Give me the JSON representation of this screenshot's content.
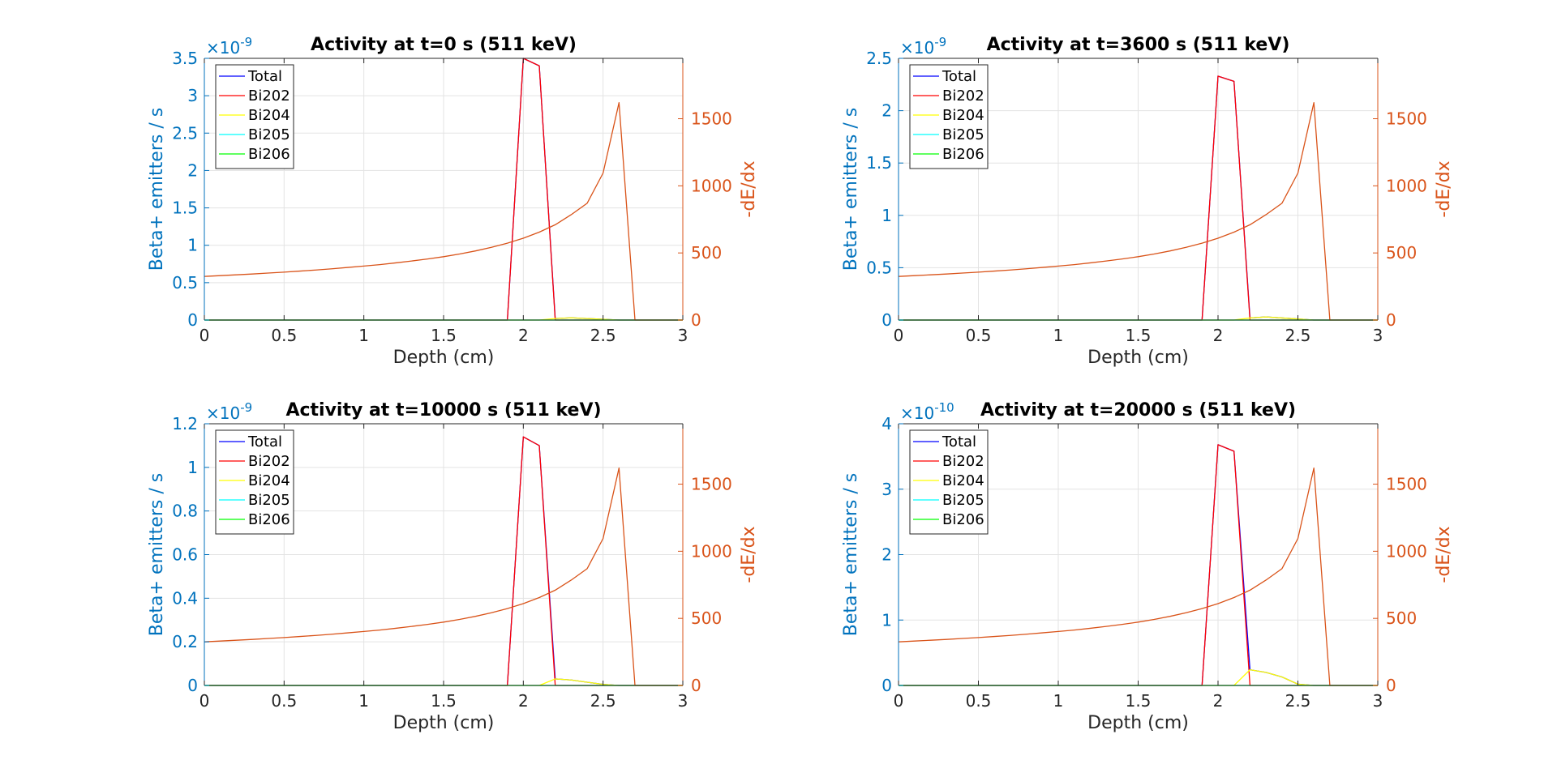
{
  "colors": {
    "left_axis": "#0072bd",
    "right_axis": "#d95319",
    "x_axis": "#262626",
    "grid": "#e3e3e3"
  },
  "legend_placement": "top-left",
  "grid": true,
  "chart_data": [
    {
      "type": "line",
      "title": "Activity at t=0 s (511 keV)",
      "xlabel": "Depth (cm)",
      "ylabel": "Beta+ emitters / s",
      "y2label": "-dE/dx",
      "exponent_base": "×10",
      "exponent_power": "-9",
      "xlim": [
        0,
        3
      ],
      "ylim": [
        0,
        3.5
      ],
      "y2lim": [
        0,
        1950
      ],
      "xticks": [
        "0",
        "0.5",
        "1",
        "1.5",
        "2",
        "2.5",
        "3"
      ],
      "yticks": [
        "0",
        "0.5",
        "1",
        "1.5",
        "2",
        "2.5",
        "3",
        "3.5"
      ],
      "y2ticks": [
        "0",
        "500",
        "1000",
        "1500"
      ],
      "x": [
        0,
        0.1,
        0.2,
        0.3,
        0.4,
        0.5,
        0.6,
        0.7,
        0.8,
        0.9,
        1.0,
        1.1,
        1.2,
        1.3,
        1.4,
        1.5,
        1.6,
        1.7,
        1.8,
        1.9,
        2.0,
        2.1,
        2.2,
        2.3,
        2.4,
        2.5,
        2.6,
        2.7,
        2.8,
        2.9,
        3.0
      ],
      "series": [
        {
          "name": "Total",
          "color": "#0000ff",
          "axis": "left",
          "values": [
            0,
            0,
            0,
            0,
            0,
            0,
            0,
            0,
            0,
            0,
            0,
            0,
            0,
            0,
            0,
            0,
            0,
            0,
            0,
            0,
            3.5,
            3.4,
            0.02,
            0.03,
            0.02,
            0.01,
            0,
            0,
            0,
            0,
            0
          ]
        },
        {
          "name": "Bi202",
          "color": "#ff0000",
          "axis": "left",
          "values": [
            0,
            0,
            0,
            0,
            0,
            0,
            0,
            0,
            0,
            0,
            0,
            0,
            0,
            0,
            0,
            0,
            0,
            0,
            0,
            0,
            3.5,
            3.4,
            0,
            0,
            0,
            0,
            0,
            0,
            0,
            0,
            0
          ]
        },
        {
          "name": "Bi204",
          "color": "#ffff00",
          "axis": "left",
          "values": [
            0,
            0,
            0,
            0,
            0,
            0,
            0,
            0,
            0,
            0,
            0,
            0,
            0,
            0,
            0,
            0,
            0,
            0,
            0,
            0,
            0,
            0,
            0.02,
            0.03,
            0.02,
            0.01,
            0,
            0,
            0,
            0,
            0
          ]
        },
        {
          "name": "Bi205",
          "color": "#00ffff",
          "axis": "left",
          "values": [
            0,
            0,
            0,
            0,
            0,
            0,
            0,
            0,
            0,
            0,
            0,
            0,
            0,
            0,
            0,
            0,
            0,
            0,
            0,
            0,
            0,
            0,
            0,
            0,
            0,
            0,
            0,
            0,
            0,
            0,
            0
          ]
        },
        {
          "name": "Bi206",
          "color": "#00ff00",
          "axis": "left",
          "values": [
            0,
            0,
            0,
            0,
            0,
            0,
            0,
            0,
            0,
            0,
            0,
            0,
            0,
            0,
            0,
            0,
            0,
            0,
            0,
            0,
            0,
            0,
            0,
            0,
            0,
            0,
            0,
            0,
            0,
            0,
            0
          ]
        },
        {
          "color": "#d95319",
          "axis": "right",
          "values": [
            325,
            331,
            337,
            343,
            350,
            357,
            365,
            373,
            382,
            392,
            402,
            413,
            426,
            440,
            455,
            472,
            492,
            515,
            542,
            573,
            610,
            655,
            710,
            785,
            870,
            1095,
            1620,
            0,
            0,
            0,
            0
          ]
        }
      ]
    },
    {
      "type": "line",
      "title": "Activity at t=3600 s (511 keV)",
      "xlabel": "Depth (cm)",
      "ylabel": "Beta+ emitters / s",
      "y2label": "-dE/dx",
      "exponent_base": "×10",
      "exponent_power": "-9",
      "xlim": [
        0,
        3
      ],
      "ylim": [
        0,
        2.5
      ],
      "y2lim": [
        0,
        1950
      ],
      "xticks": [
        "0",
        "0.5",
        "1",
        "1.5",
        "2",
        "2.5",
        "3"
      ],
      "yticks": [
        "0",
        "0.5",
        "1",
        "1.5",
        "2",
        "2.5"
      ],
      "y2ticks": [
        "0",
        "500",
        "1000",
        "1500"
      ],
      "x": [
        0,
        0.1,
        0.2,
        0.3,
        0.4,
        0.5,
        0.6,
        0.7,
        0.8,
        0.9,
        1.0,
        1.1,
        1.2,
        1.3,
        1.4,
        1.5,
        1.6,
        1.7,
        1.8,
        1.9,
        2.0,
        2.1,
        2.2,
        2.3,
        2.4,
        2.5,
        2.6,
        2.7,
        2.8,
        2.9,
        3.0
      ],
      "series": [
        {
          "name": "Total",
          "color": "#0000ff",
          "axis": "left",
          "values": [
            0,
            0,
            0,
            0,
            0,
            0,
            0,
            0,
            0,
            0,
            0,
            0,
            0,
            0,
            0,
            0,
            0,
            0,
            0,
            0,
            2.33,
            2.28,
            0.02,
            0.03,
            0.02,
            0.01,
            0,
            0,
            0,
            0,
            0
          ]
        },
        {
          "name": "Bi202",
          "color": "#ff0000",
          "axis": "left",
          "values": [
            0,
            0,
            0,
            0,
            0,
            0,
            0,
            0,
            0,
            0,
            0,
            0,
            0,
            0,
            0,
            0,
            0,
            0,
            0,
            0,
            2.33,
            2.28,
            0,
            0,
            0,
            0,
            0,
            0,
            0,
            0,
            0
          ]
        },
        {
          "name": "Bi204",
          "color": "#ffff00",
          "axis": "left",
          "values": [
            0,
            0,
            0,
            0,
            0,
            0,
            0,
            0,
            0,
            0,
            0,
            0,
            0,
            0,
            0,
            0,
            0,
            0,
            0,
            0,
            0,
            0,
            0.02,
            0.03,
            0.02,
            0.01,
            0,
            0,
            0,
            0,
            0
          ]
        },
        {
          "name": "Bi205",
          "color": "#00ffff",
          "axis": "left",
          "values": [
            0,
            0,
            0,
            0,
            0,
            0,
            0,
            0,
            0,
            0,
            0,
            0,
            0,
            0,
            0,
            0,
            0,
            0,
            0,
            0,
            0,
            0,
            0,
            0,
            0,
            0,
            0,
            0,
            0,
            0,
            0
          ]
        },
        {
          "name": "Bi206",
          "color": "#00ff00",
          "axis": "left",
          "values": [
            0,
            0,
            0,
            0,
            0,
            0,
            0,
            0,
            0,
            0,
            0,
            0,
            0,
            0,
            0,
            0,
            0,
            0,
            0,
            0,
            0,
            0,
            0,
            0,
            0,
            0,
            0,
            0,
            0,
            0,
            0
          ]
        },
        {
          "color": "#d95319",
          "axis": "right",
          "values": [
            325,
            331,
            337,
            343,
            350,
            357,
            365,
            373,
            382,
            392,
            402,
            413,
            426,
            440,
            455,
            472,
            492,
            515,
            542,
            573,
            610,
            655,
            710,
            785,
            870,
            1095,
            1620,
            0,
            0,
            0,
            0
          ]
        }
      ]
    },
    {
      "type": "line",
      "title": "Activity at t=10000 s (511 keV)",
      "xlabel": "Depth (cm)",
      "ylabel": "Beta+ emitters / s",
      "y2label": "-dE/dx",
      "exponent_base": "×10",
      "exponent_power": "-9",
      "xlim": [
        0,
        3
      ],
      "ylim": [
        0,
        1.2
      ],
      "y2lim": [
        0,
        1950
      ],
      "xticks": [
        "0",
        "0.5",
        "1",
        "1.5",
        "2",
        "2.5",
        "3"
      ],
      "yticks": [
        "0",
        "0.2",
        "0.4",
        "0.6",
        "0.8",
        "1",
        "1.2"
      ],
      "y2ticks": [
        "0",
        "500",
        "1000",
        "1500"
      ],
      "x": [
        0,
        0.1,
        0.2,
        0.3,
        0.4,
        0.5,
        0.6,
        0.7,
        0.8,
        0.9,
        1.0,
        1.1,
        1.2,
        1.3,
        1.4,
        1.5,
        1.6,
        1.7,
        1.8,
        1.9,
        2.0,
        2.1,
        2.2,
        2.3,
        2.4,
        2.5,
        2.6,
        2.7,
        2.8,
        2.9,
        3.0
      ],
      "series": [
        {
          "name": "Total",
          "color": "#0000ff",
          "axis": "left",
          "values": [
            0,
            0,
            0,
            0,
            0,
            0,
            0,
            0,
            0,
            0,
            0,
            0,
            0,
            0,
            0,
            0,
            0,
            0,
            0,
            0,
            1.14,
            1.1,
            0.03,
            0.025,
            0.015,
            0.005,
            0,
            0,
            0,
            0,
            0
          ]
        },
        {
          "name": "Bi202",
          "color": "#ff0000",
          "axis": "left",
          "values": [
            0,
            0,
            0,
            0,
            0,
            0,
            0,
            0,
            0,
            0,
            0,
            0,
            0,
            0,
            0,
            0,
            0,
            0,
            0,
            0,
            1.14,
            1.1,
            0,
            0,
            0,
            0,
            0,
            0,
            0,
            0,
            0
          ]
        },
        {
          "name": "Bi204",
          "color": "#ffff00",
          "axis": "left",
          "values": [
            0,
            0,
            0,
            0,
            0,
            0,
            0,
            0,
            0,
            0,
            0,
            0,
            0,
            0,
            0,
            0,
            0,
            0,
            0,
            0,
            0,
            0,
            0.03,
            0.025,
            0.015,
            0.005,
            0,
            0,
            0,
            0,
            0
          ]
        },
        {
          "name": "Bi205",
          "color": "#00ffff",
          "axis": "left",
          "values": [
            0,
            0,
            0,
            0,
            0,
            0,
            0,
            0,
            0,
            0,
            0,
            0,
            0,
            0,
            0,
            0,
            0,
            0,
            0,
            0,
            0,
            0,
            0,
            0,
            0,
            0,
            0,
            0,
            0,
            0,
            0
          ]
        },
        {
          "name": "Bi206",
          "color": "#00ff00",
          "axis": "left",
          "values": [
            0,
            0,
            0,
            0,
            0,
            0,
            0,
            0,
            0,
            0,
            0,
            0,
            0,
            0,
            0,
            0,
            0,
            0,
            0,
            0,
            0,
            0,
            0,
            0,
            0,
            0,
            0,
            0,
            0,
            0,
            0
          ]
        },
        {
          "color": "#d95319",
          "axis": "right",
          "values": [
            325,
            331,
            337,
            343,
            350,
            357,
            365,
            373,
            382,
            392,
            402,
            413,
            426,
            440,
            455,
            472,
            492,
            515,
            542,
            573,
            610,
            655,
            710,
            785,
            870,
            1095,
            1620,
            0,
            0,
            0,
            0
          ]
        }
      ]
    },
    {
      "type": "line",
      "title": "Activity at t=20000 s (511 keV)",
      "xlabel": "Depth (cm)",
      "ylabel": "Beta+ emitters / s",
      "y2label": "-dE/dx",
      "exponent_base": "×10",
      "exponent_power": "-10",
      "xlim": [
        0,
        3
      ],
      "ylim": [
        0,
        4
      ],
      "y2lim": [
        0,
        1950
      ],
      "xticks": [
        "0",
        "0.5",
        "1",
        "1.5",
        "2",
        "2.5",
        "3"
      ],
      "yticks": [
        "0",
        "1",
        "2",
        "3",
        "4"
      ],
      "y2ticks": [
        "0",
        "500",
        "1000",
        "1500"
      ],
      "x": [
        0,
        0.1,
        0.2,
        0.3,
        0.4,
        0.5,
        0.6,
        0.7,
        0.8,
        0.9,
        1.0,
        1.1,
        1.2,
        1.3,
        1.4,
        1.5,
        1.6,
        1.7,
        1.8,
        1.9,
        2.0,
        2.1,
        2.2,
        2.3,
        2.4,
        2.5,
        2.6,
        2.7,
        2.8,
        2.9,
        3.0
      ],
      "series": [
        {
          "name": "Total",
          "color": "#0000ff",
          "axis": "left",
          "values": [
            0,
            0,
            0,
            0,
            0,
            0,
            0,
            0,
            0,
            0,
            0,
            0,
            0,
            0,
            0,
            0,
            0,
            0,
            0,
            0,
            3.68,
            3.58,
            0.24,
            0.2,
            0.13,
            0.02,
            0,
            0,
            0,
            0,
            0
          ]
        },
        {
          "name": "Bi202",
          "color": "#ff0000",
          "axis": "left",
          "values": [
            0,
            0,
            0,
            0,
            0,
            0,
            0,
            0,
            0,
            0,
            0,
            0,
            0,
            0,
            0,
            0,
            0,
            0,
            0,
            0,
            3.68,
            3.58,
            0,
            0,
            0,
            0,
            0,
            0,
            0,
            0,
            0
          ]
        },
        {
          "name": "Bi204",
          "color": "#ffff00",
          "axis": "left",
          "values": [
            0,
            0,
            0,
            0,
            0,
            0,
            0,
            0,
            0,
            0,
            0,
            0,
            0,
            0,
            0,
            0,
            0,
            0,
            0,
            0,
            0,
            0,
            0.24,
            0.2,
            0.13,
            0.02,
            0,
            0,
            0,
            0,
            0
          ]
        },
        {
          "name": "Bi205",
          "color": "#00ffff",
          "axis": "left",
          "values": [
            0,
            0,
            0,
            0,
            0,
            0,
            0,
            0,
            0,
            0,
            0,
            0,
            0,
            0,
            0,
            0,
            0,
            0,
            0,
            0,
            0,
            0,
            0,
            0,
            0,
            0,
            0,
            0,
            0,
            0,
            0
          ]
        },
        {
          "name": "Bi206",
          "color": "#00ff00",
          "axis": "left",
          "values": [
            0,
            0,
            0,
            0,
            0,
            0,
            0,
            0,
            0,
            0,
            0,
            0,
            0,
            0,
            0,
            0,
            0,
            0,
            0,
            0,
            0,
            0,
            0,
            0,
            0,
            0,
            0,
            0,
            0,
            0,
            0
          ]
        },
        {
          "color": "#d95319",
          "axis": "right",
          "values": [
            325,
            331,
            337,
            343,
            350,
            357,
            365,
            373,
            382,
            392,
            402,
            413,
            426,
            440,
            455,
            472,
            492,
            515,
            542,
            573,
            610,
            655,
            710,
            785,
            870,
            1095,
            1620,
            0,
            0,
            0,
            0
          ]
        }
      ]
    }
  ]
}
